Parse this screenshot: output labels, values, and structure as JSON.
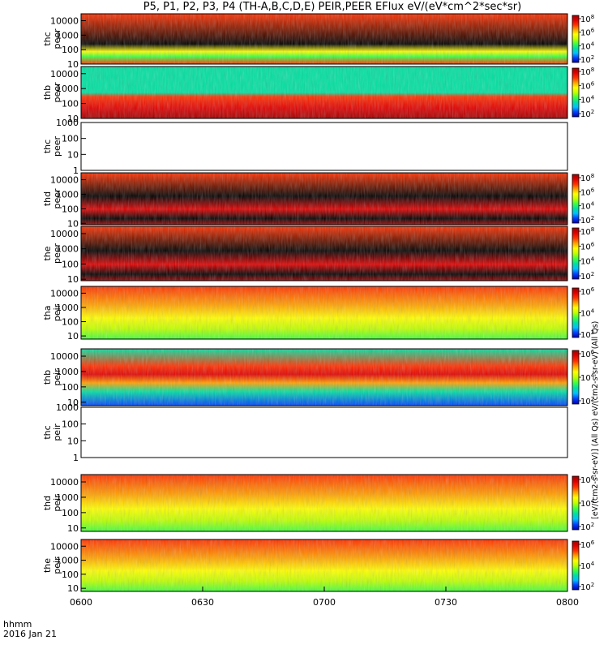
{
  "title": "P5, P1, P2, P3, P4 (TH-A,B,C,D,E) PEIR,PEER EFlux eV/(eV*cm^2*sec*sr)",
  "x_header": {
    "line1": "hhmm",
    "line2": "2016 Jan 21"
  },
  "colorbar_label": "[eV/(cm2-s-sr-eV)] (All Qs) eV/(cm2-s-sr-eV) (All Qs)",
  "chart_data": {
    "type": "heatmap",
    "x_ticks": [
      "0600",
      "0630",
      "0700",
      "0730",
      "0800"
    ],
    "x_range": [
      "06:00",
      "08:00"
    ],
    "y_scale": "log",
    "panels": [
      {
        "name": "thc peer",
        "line1": "thc",
        "line2": "peer",
        "ylim": [
          10,
          30000
        ],
        "y_ticks": [
          "10",
          "100",
          "1000",
          "10000"
        ],
        "colorbar": [
          "10^2",
          "10^4",
          "10^6",
          "10^8"
        ],
        "has_data": true
      },
      {
        "name": "thb peer",
        "line1": "thb",
        "line2": "peer",
        "ylim": [
          10,
          30000
        ],
        "y_ticks": [
          "10",
          "100",
          "1000",
          "10000"
        ],
        "colorbar": [
          "10^2",
          "10^4",
          "10^6",
          "10^8"
        ],
        "has_data": true
      },
      {
        "name": "thc peer (2)",
        "line1": "thc",
        "line2": "peer",
        "ylim": [
          1,
          1000
        ],
        "y_ticks": [
          "1",
          "10",
          "100",
          "1000"
        ],
        "colorbar": [],
        "has_data": false
      },
      {
        "name": "thd peer",
        "line1": "thd",
        "line2": "peer",
        "ylim": [
          8,
          30000
        ],
        "y_ticks": [
          "10",
          "100",
          "1000",
          "10000"
        ],
        "colorbar": [
          "10^2",
          "10^4",
          "10^6",
          "10^8"
        ],
        "has_data": true
      },
      {
        "name": "the peer",
        "line1": "the",
        "line2": "peer",
        "ylim": [
          8,
          30000
        ],
        "y_ticks": [
          "10",
          "100",
          "1000",
          "10000"
        ],
        "colorbar": [
          "10^2",
          "10^4",
          "10^6",
          "10^8"
        ],
        "has_data": true
      },
      {
        "name": "tha peir",
        "line1": "tha",
        "line2": "peir",
        "ylim": [
          6,
          30000
        ],
        "y_ticks": [
          "10",
          "100",
          "1000",
          "10000"
        ],
        "colorbar": [
          "10^2",
          "10^4",
          "10^6"
        ],
        "has_data": true
      },
      {
        "name": "thb peir",
        "line1": "thb",
        "line2": "peir",
        "ylim": [
          6,
          30000
        ],
        "y_ticks": [
          "10",
          "100",
          "1000",
          "10000"
        ],
        "colorbar": [
          "10^2",
          "10^4",
          "10^6"
        ],
        "has_data": true
      },
      {
        "name": "thc peir",
        "line1": "thc",
        "line2": "peir",
        "ylim": [
          1,
          1000
        ],
        "y_ticks": [
          "1",
          "10",
          "100",
          "1000"
        ],
        "colorbar": [],
        "has_data": false
      },
      {
        "name": "thd peir",
        "line1": "thd",
        "line2": "peir",
        "ylim": [
          6,
          30000
        ],
        "y_ticks": [
          "10",
          "100",
          "1000",
          "10000"
        ],
        "colorbar": [
          "10^2",
          "10^4",
          "10^6"
        ],
        "has_data": true
      },
      {
        "name": "the peir",
        "line1": "the",
        "line2": "peir",
        "ylim": [
          6,
          30000
        ],
        "y_ticks": [
          "10",
          "100",
          "1000",
          "10000"
        ],
        "colorbar": [
          "10^2",
          "10^4",
          "10^6"
        ],
        "has_data": true
      }
    ],
    "colormap": [
      "#0000b0",
      "#0040ff",
      "#00c0ff",
      "#00e0a0",
      "#40ff40",
      "#c0ff00",
      "#ffff00",
      "#ffa000",
      "#ff3000",
      "#e00000",
      "#a00000"
    ]
  }
}
